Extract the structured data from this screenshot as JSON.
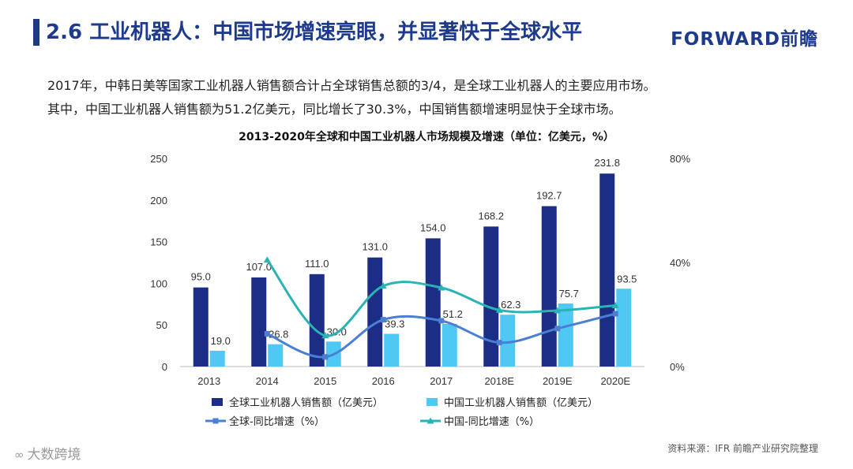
{
  "header": {
    "title": "2.6 工业机器人：中国市场增速亮眼，并显著快于全球水平",
    "logo": "FORWARD前瞻"
  },
  "intro": {
    "line1": "2017年，中韩日美等国家工业机器人销售额合计占全球销售总额的3/4，是全球工业机器人的主要应用市场。",
    "line2": "其中，中国工业机器人销售额为51.2亿美元，同比增长了30.3%，中国销售额增速明显快于全球市场。"
  },
  "chart_data": {
    "type": "bar+line",
    "title": "2013-2020年全球和中国工业机器人市场规模及增速（单位：亿美元，%）",
    "categories": [
      "2013",
      "2014",
      "2015",
      "2016",
      "2017",
      "2018E",
      "2019E",
      "2020E"
    ],
    "left_axis": {
      "min": 0,
      "max": 250,
      "ticks": [
        "0",
        "50",
        "100",
        "150",
        "200",
        "250"
      ],
      "tick_values": [
        0,
        50,
        100,
        150,
        200,
        250
      ]
    },
    "right_axis": {
      "min": 0,
      "max": 80,
      "ticks": [
        "0%",
        "40%",
        "80%"
      ],
      "tick_values": [
        0,
        40,
        80
      ]
    },
    "bar_series": [
      {
        "name": "全球工业机器人销售额（亿美元）",
        "color": "#1c2d85",
        "values": [
          95.0,
          107.0,
          111.0,
          131.0,
          154.0,
          168.2,
          192.7,
          231.8
        ],
        "labels": [
          "95.0",
          "107.0",
          "111.0",
          "131.0",
          "154.0",
          "168.2",
          "192.7",
          "231.8"
        ]
      },
      {
        "name": "中国工业机器人销售额（亿美元）",
        "color": "#4fc8f4",
        "values": [
          19.0,
          26.8,
          30.0,
          39.3,
          51.2,
          62.3,
          75.7,
          93.5
        ],
        "labels": [
          "19.0",
          "26.8",
          "30.0",
          "39.3",
          "51.2",
          "62.3",
          "75.7",
          "93.5"
        ]
      }
    ],
    "line_series": [
      {
        "name": "全球-同比增速（%）",
        "color": "#4a7fd4",
        "marker": "square",
        "values": [
          null,
          12.6,
          3.7,
          18.0,
          17.6,
          9.2,
          14.6,
          20.3
        ]
      },
      {
        "name": "中国-同比增速（%）",
        "color": "#2ab3b5",
        "marker": "triangle",
        "values": [
          null,
          41.0,
          11.9,
          31.0,
          30.3,
          21.7,
          21.5,
          23.5
        ]
      }
    ]
  },
  "source": "资料来源：IFR 前瞻产业研究院整理",
  "watermark": {
    "icon": "∞",
    "text": "大数跨境"
  }
}
